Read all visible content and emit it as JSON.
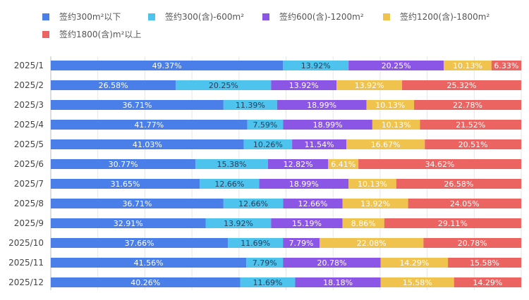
{
  "chart_data": {
    "type": "bar",
    "orientation": "horizontal",
    "stacked": true,
    "grid": true,
    "legend_placement": "top-left",
    "xlim": [
      0,
      100
    ],
    "categories": [
      "2025/1",
      "2025/2",
      "2025/3",
      "2025/4",
      "2025/5",
      "2025/6",
      "2025/7",
      "2025/8",
      "2025/9",
      "2025/10",
      "2025/11",
      "2025/12"
    ],
    "series": [
      {
        "name": "签约300m²以下",
        "color": "#4a7ee8",
        "values": [
          49.37,
          26.58,
          36.71,
          41.77,
          41.03,
          30.77,
          31.65,
          36.71,
          32.91,
          37.66,
          41.56,
          40.26
        ]
      },
      {
        "name": "签约300(含)-600m²",
        "color": "#4dc3ee",
        "values": [
          13.92,
          20.25,
          11.39,
          7.59,
          10.26,
          15.38,
          12.66,
          12.66,
          13.92,
          11.69,
          7.79,
          11.69
        ]
      },
      {
        "name": "签约600(含)-1200m²",
        "color": "#8b55e6",
        "values": [
          20.25,
          13.92,
          18.99,
          18.99,
          11.54,
          12.82,
          18.99,
          12.66,
          15.19,
          7.79,
          20.78,
          18.18
        ]
      },
      {
        "name": "签约1200(含)-1800m²",
        "color": "#f0c34e",
        "values": [
          10.13,
          13.92,
          10.13,
          10.13,
          16.67,
          6.41,
          10.13,
          13.92,
          8.86,
          22.08,
          14.29,
          15.58
        ]
      },
      {
        "name": "签约1800(含)m²以上",
        "color": "#ec6461",
        "values": [
          6.33,
          25.32,
          22.78,
          21.52,
          20.51,
          34.62,
          26.58,
          24.05,
          29.11,
          20.78,
          15.58,
          14.29
        ]
      }
    ]
  }
}
